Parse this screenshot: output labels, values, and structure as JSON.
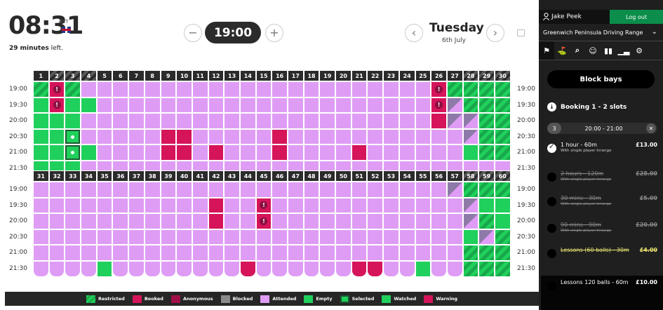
{
  "header": {
    "clock": "08:31",
    "timezone": "BST",
    "minutes_left_value": "29 minutes",
    "minutes_left_suffix": " left.",
    "selected_time": "19:00",
    "day": "Tuesday",
    "date": "6th July",
    "minus": "−",
    "plus": "+",
    "prev": "‹",
    "next": "›"
  },
  "time_labels": [
    "19:00",
    "19:30",
    "20:00",
    "20:30",
    "21:00",
    "21:30"
  ],
  "grid_top": {
    "bays": [
      "1",
      "2",
      "3",
      "4",
      "5",
      "6",
      "7",
      "8",
      "9",
      "10",
      "11",
      "12",
      "13",
      "14",
      "15",
      "16",
      "17",
      "18",
      "19",
      "20",
      "21",
      "22",
      "23",
      "24",
      "25",
      "26",
      "27",
      "28",
      "29",
      "30"
    ],
    "striped_headers": [
      1,
      2,
      3,
      27,
      28,
      29,
      30
    ],
    "rows": [
      "RRRAAAAAAAAAAAAAAAAAAAAAAWRRRR",
      "EWEEAAAAAAAAAAAAAAAAAAAAAWMRRR",
      "EEEAAAAAAAAAAAAAAAAAAAAAAAMMRR",
      "EESAAAAAAAAAAAAAAAAAAAAAAAAMRR",
      "EESEAAAAAAAAAAAAAAAAAAAAAAAERR",
      "EEEAAAAAAAAAAAAAAAAAAAAAAAAAAA"
    ],
    "cells_booked": [
      [
        3,
        8
      ],
      [
        3,
        9
      ],
      [
        4,
        8
      ],
      [
        4,
        9
      ],
      [
        3,
        15
      ],
      [
        4,
        15
      ],
      [
        2,
        25
      ],
      [
        4,
        20
      ],
      [
        4,
        11
      ]
    ],
    "warnings": [
      [
        0,
        1
      ],
      [
        1,
        1
      ],
      [
        0,
        25
      ],
      [
        1,
        25
      ]
    ]
  },
  "grid_bottom": {
    "bays": [
      "31",
      "32",
      "33",
      "34",
      "35",
      "36",
      "37",
      "38",
      "39",
      "40",
      "41",
      "42",
      "43",
      "44",
      "45",
      "46",
      "47",
      "48",
      "49",
      "50",
      "51",
      "52",
      "53",
      "54",
      "55",
      "56",
      "57",
      "58",
      "59",
      "60"
    ],
    "striped_headers": [
      27,
      28,
      29
    ],
    "rows": [
      "AAAAAAAAAAAAAAAAAAAAAAAAAAMRRR",
      "AAAAAAAAAAABAABAAAAAAAAAAAAMEE",
      "AAAAAAAAAAABAABAAAAAAAAAAAAMRE",
      "AAAAAAAAAAAAAAAAAAAAAAAAAAAEMR",
      "AAAAAAAAAAAAAAAAAAAAAAAAAAARRR",
      "AAAAEAAAAAAAABAAAAAABBAAEAARRR"
    ],
    "warnings": [
      [
        1,
        14
      ],
      [
        2,
        14
      ]
    ]
  },
  "legend": [
    {
      "key": "restricted",
      "label": "Restricted",
      "color": "#20d05c"
    },
    {
      "key": "booked",
      "label": "Booked",
      "color": "#d5145a"
    },
    {
      "key": "anonymous",
      "label": "Anonymous",
      "color": "#a01048"
    },
    {
      "key": "blocked",
      "label": "Blocked",
      "color": "#8a8a8a"
    },
    {
      "key": "attended",
      "label": "Attended",
      "color": "#df9cf5"
    },
    {
      "key": "empty",
      "label": "Empty",
      "color": "#20d05c"
    },
    {
      "key": "selected",
      "label": "Selected",
      "color": "#20d05c"
    },
    {
      "key": "watched",
      "label": "Watched",
      "color": "#20d05c"
    },
    {
      "key": "warning",
      "label": "Warning",
      "color": "#d5145a"
    }
  ],
  "sidebar": {
    "user": "Jake Peek",
    "logout": "Log out",
    "venue": "Greenwich Peninsula Driving Range",
    "block_bays": "Block bays",
    "booking_title": "Booking 1 - 2 slots",
    "slot_number": "3",
    "slot_time": "20:00 - 21:00",
    "options": [
      {
        "title": "1 hour - 60m",
        "sub": "With single player Inrange",
        "price": "£13.00",
        "state": "selected"
      },
      {
        "title": "2 hours - 120m",
        "sub": "With single player Inrange",
        "price": "£28.00",
        "state": "disabled"
      },
      {
        "title": "30 mins - 30m",
        "sub": "With single player Inrange",
        "price": "£5.00",
        "state": "disabled"
      },
      {
        "title": "90 mins - 90m",
        "sub": "With single player Inrange",
        "price": "£20.00",
        "state": "disabled"
      },
      {
        "title": "Lessons (60 balls) - 30m",
        "sub": "",
        "price": "£4.00",
        "state": "disabled-yellow"
      },
      {
        "title": "Lessons 120 balls - 60m",
        "sub": "",
        "price": "£10.00",
        "state": "normal"
      }
    ]
  }
}
